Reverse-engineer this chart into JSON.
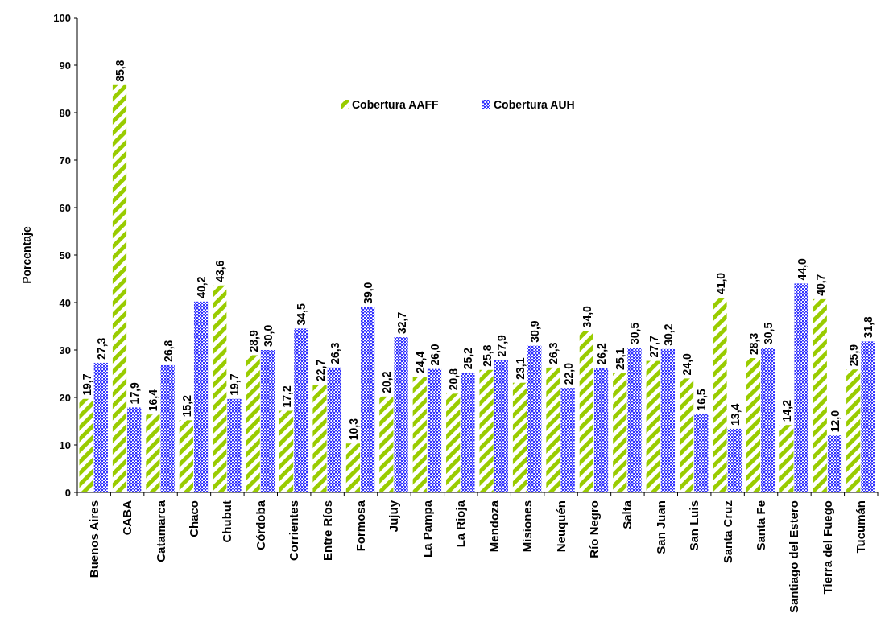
{
  "chart_data": {
    "type": "bar",
    "ylabel": "Porcentaje",
    "ylim": [
      0,
      100
    ],
    "yticks": [
      0,
      10,
      20,
      30,
      40,
      50,
      60,
      70,
      80,
      90,
      100
    ],
    "grid": false,
    "legend": "top",
    "categories": [
      "Buenos Aires",
      "CABA",
      "Catamarca",
      "Chaco",
      "Chubut",
      "Córdoba",
      "Corrientes",
      "Entre Ríos",
      "Formosa",
      "Jujuy",
      "La Pampa",
      "La Rioja",
      "Mendoza",
      "Misiones",
      "Neuquén",
      "Río Negro",
      "Salta",
      "San Juan",
      "San Luis",
      "Santa Cruz",
      "Santa Fe",
      "Santiago del Estero",
      "Tierra del Fuego",
      "Tucumán"
    ],
    "series": [
      {
        "name": "Cobertura AAFF",
        "color": "#99cc00",
        "values": [
          19.7,
          85.8,
          16.4,
          15.2,
          43.6,
          28.9,
          17.2,
          22.7,
          10.3,
          20.2,
          24.4,
          20.8,
          25.8,
          23.1,
          26.3,
          34.0,
          25.1,
          27.7,
          24.0,
          41.0,
          28.3,
          14.2,
          40.7,
          25.9
        ],
        "value_labels": [
          "19,7",
          "85,8",
          "16,4",
          "15,2",
          "43,6",
          "28,9",
          "17,2",
          "22,7",
          "10,3",
          "20,2",
          "24,4",
          "20,8",
          "25,8",
          "23,1",
          "26,3",
          "34,0",
          "25,1",
          "27,7",
          "24,0",
          "41,0",
          "28,3",
          "14,2",
          "40,7",
          "25,9"
        ]
      },
      {
        "name": "Cobertura AUH",
        "color": "#3333ff",
        "values": [
          27.3,
          17.9,
          26.8,
          40.2,
          19.7,
          30.0,
          34.5,
          26.3,
          39.0,
          32.7,
          26.0,
          25.2,
          27.9,
          30.9,
          22.0,
          26.2,
          30.5,
          30.2,
          16.5,
          13.4,
          30.5,
          44.0,
          12.0,
          31.8
        ],
        "value_labels": [
          "27,3",
          "17,9",
          "26,8",
          "40,2",
          "19,7",
          "30,0",
          "34,5",
          "26,3",
          "39,0",
          "32,7",
          "26,0",
          "25,2",
          "27,9",
          "30,9",
          "22,0",
          "26,2",
          "30,5",
          "30,2",
          "16,5",
          "13,4",
          "30,5",
          "44,0",
          "12,0",
          "31,8"
        ]
      }
    ]
  }
}
